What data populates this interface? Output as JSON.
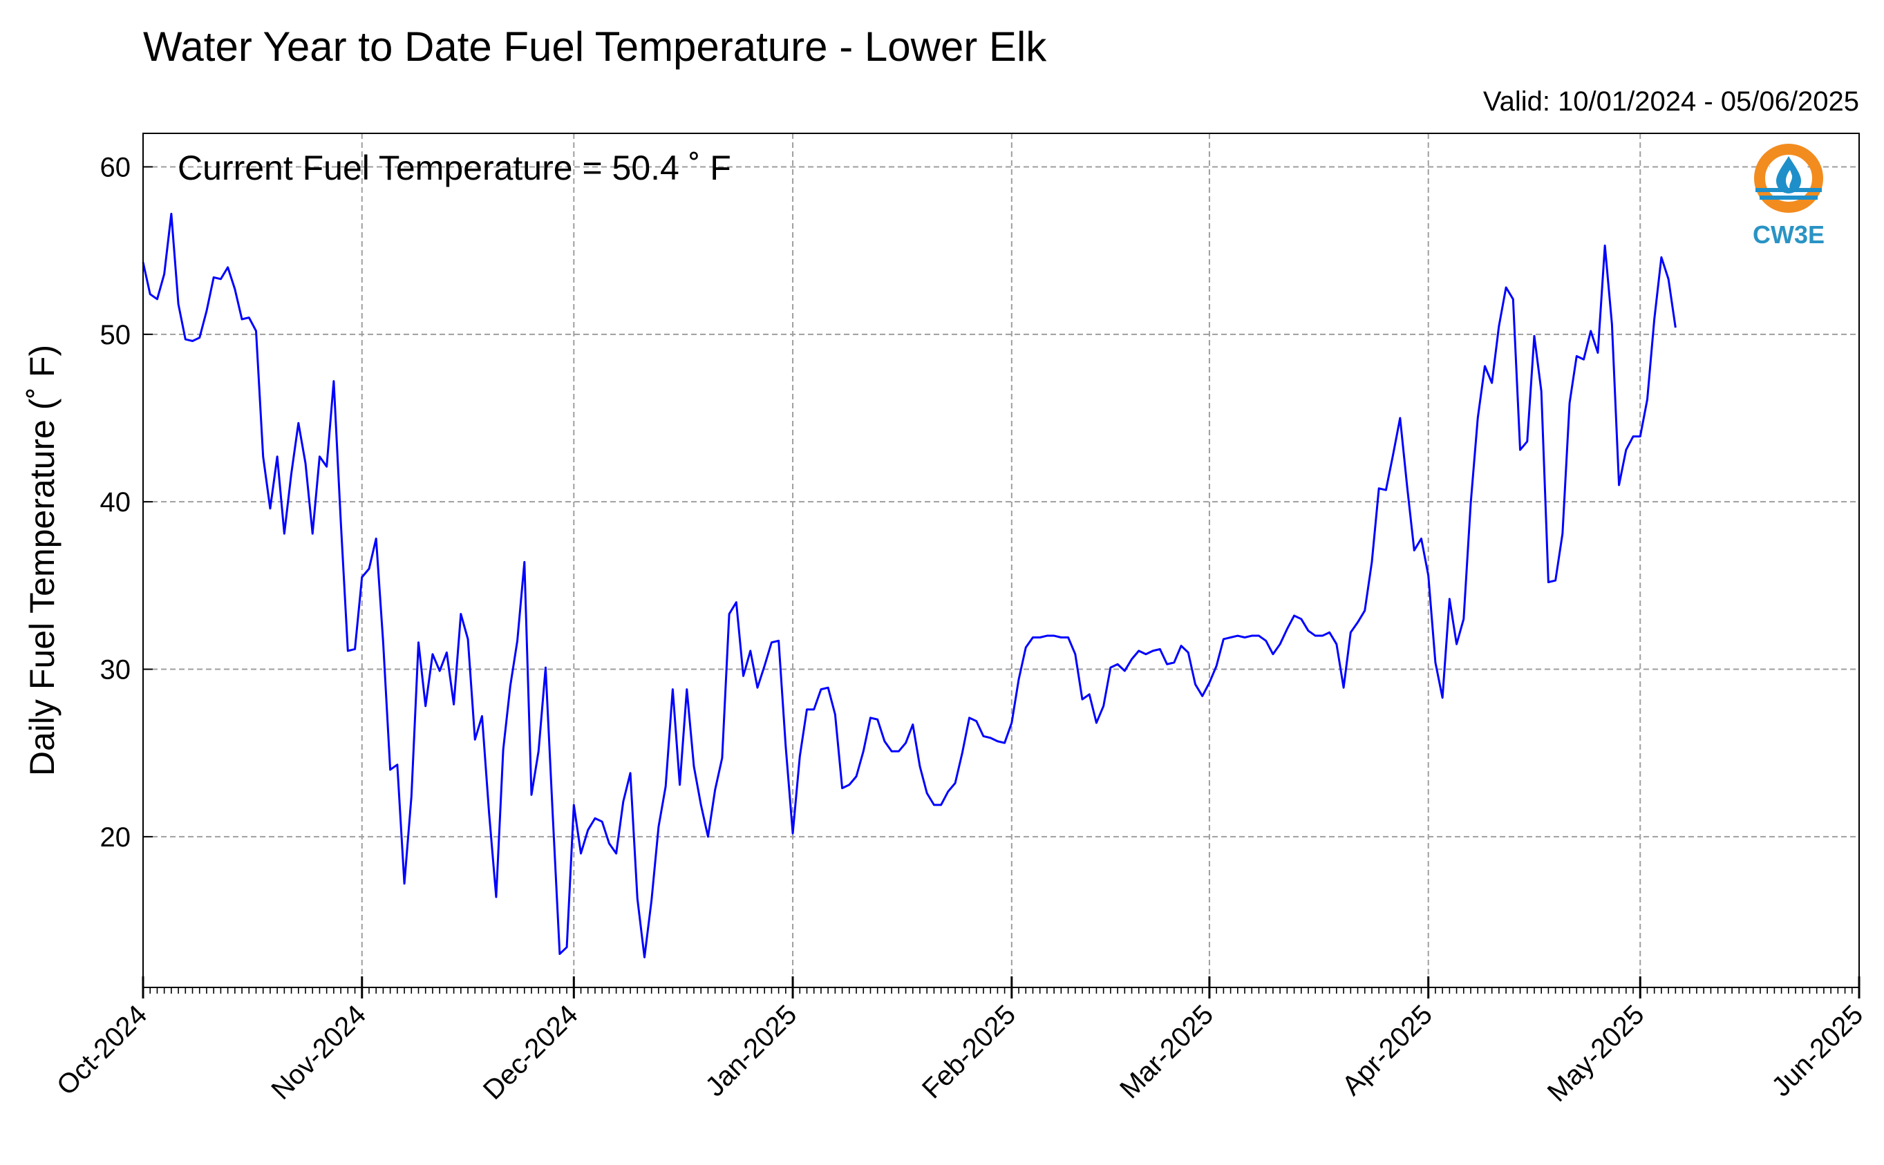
{
  "chart_data": {
    "type": "line",
    "title": "Water Year to Date Fuel Temperature - Lower Elk",
    "subtitle": "Valid: 10/01/2024 - 05/06/2025",
    "annotation": "Current Fuel Temperature = 50.4 ˚ F",
    "xlabel": "",
    "ylabel": "Daily Fuel Temperature (˚ F)",
    "x_start": "2024-10-01",
    "x_end": "2025-06-01",
    "xticks": [
      {
        "date": "2024-10-01",
        "label": "Oct-2024"
      },
      {
        "date": "2024-11-01",
        "label": "Nov-2024"
      },
      {
        "date": "2024-12-01",
        "label": "Dec-2024"
      },
      {
        "date": "2025-01-01",
        "label": "Jan-2025"
      },
      {
        "date": "2025-02-01",
        "label": "Feb-2025"
      },
      {
        "date": "2025-03-01",
        "label": "Mar-2025"
      },
      {
        "date": "2025-04-01",
        "label": "Apr-2025"
      },
      {
        "date": "2025-05-01",
        "label": "May-2025"
      },
      {
        "date": "2025-06-01",
        "label": "Jun-2025"
      }
    ],
    "yticks": [
      20,
      30,
      40,
      50,
      60
    ],
    "ylim": [
      11,
      62
    ],
    "grid": true,
    "line_color": "#0000ff",
    "series": [
      {
        "x": [
          "2024-10-01",
          "2024-10-02",
          "2024-10-03",
          "2024-10-04",
          "2024-10-05",
          "2024-10-06",
          "2024-10-07",
          "2024-10-08",
          "2024-10-09",
          "2024-10-10",
          "2024-10-11",
          "2024-10-12",
          "2024-10-13",
          "2024-10-14",
          "2024-10-15",
          "2024-10-16",
          "2024-10-17",
          "2024-10-18",
          "2024-10-19",
          "2024-10-20",
          "2024-10-21",
          "2024-10-22",
          "2024-10-23",
          "2024-10-24",
          "2024-10-25",
          "2024-10-26",
          "2024-10-27",
          "2024-10-28",
          "2024-10-29",
          "2024-10-30",
          "2024-10-31",
          "2024-11-01",
          "2024-11-02",
          "2024-11-03",
          "2024-11-04",
          "2024-11-05",
          "2024-11-06",
          "2024-11-07",
          "2024-11-08",
          "2024-11-09",
          "2024-11-10",
          "2024-11-11",
          "2024-11-12",
          "2024-11-13",
          "2024-11-14",
          "2024-11-15",
          "2024-11-16",
          "2024-11-17",
          "2024-11-18",
          "2024-11-19",
          "2024-11-20",
          "2024-11-21",
          "2024-11-22",
          "2024-11-23",
          "2024-11-24",
          "2024-11-25",
          "2024-11-26",
          "2024-11-27",
          "2024-11-28",
          "2024-11-29",
          "2024-11-30",
          "2024-12-01",
          "2024-12-02",
          "2024-12-03",
          "2024-12-04",
          "2024-12-05",
          "2024-12-06",
          "2024-12-07",
          "2024-12-08",
          "2024-12-09",
          "2024-12-10",
          "2024-12-11",
          "2024-12-12",
          "2024-12-13",
          "2024-12-14",
          "2024-12-15",
          "2024-12-16",
          "2024-12-17",
          "2024-12-18",
          "2024-12-19",
          "2024-12-20",
          "2024-12-21",
          "2024-12-22",
          "2024-12-23",
          "2024-12-24",
          "2024-12-25",
          "2024-12-26",
          "2024-12-27",
          "2024-12-28",
          "2024-12-29",
          "2024-12-30",
          "2024-12-31",
          "2025-01-01",
          "2025-01-02",
          "2025-01-03",
          "2025-01-04",
          "2025-01-05",
          "2025-01-06",
          "2025-01-07",
          "2025-01-08",
          "2025-01-09",
          "2025-01-10",
          "2025-01-11",
          "2025-01-12",
          "2025-01-13",
          "2025-01-14",
          "2025-01-15",
          "2025-01-16",
          "2025-01-17",
          "2025-01-18",
          "2025-01-19",
          "2025-01-20",
          "2025-01-21",
          "2025-01-22",
          "2025-01-23",
          "2025-01-24",
          "2025-01-25",
          "2025-01-26",
          "2025-01-27",
          "2025-01-28",
          "2025-01-29",
          "2025-01-30",
          "2025-01-31",
          "2025-02-01",
          "2025-02-02",
          "2025-02-03",
          "2025-02-04",
          "2025-02-05",
          "2025-02-06",
          "2025-02-07",
          "2025-02-08",
          "2025-02-09",
          "2025-02-10",
          "2025-02-11",
          "2025-02-12",
          "2025-02-13",
          "2025-02-14",
          "2025-02-15",
          "2025-02-16",
          "2025-02-17",
          "2025-02-18",
          "2025-02-19",
          "2025-02-20",
          "2025-02-21",
          "2025-02-22",
          "2025-02-23",
          "2025-02-24",
          "2025-02-25",
          "2025-02-26",
          "2025-02-27",
          "2025-02-28",
          "2025-03-01",
          "2025-03-02",
          "2025-03-03",
          "2025-03-04",
          "2025-03-05",
          "2025-03-06",
          "2025-03-07",
          "2025-03-08",
          "2025-03-09",
          "2025-03-10",
          "2025-03-11",
          "2025-03-12",
          "2025-03-13",
          "2025-03-14",
          "2025-03-15",
          "2025-03-16",
          "2025-03-17",
          "2025-03-18",
          "2025-03-19",
          "2025-03-20",
          "2025-03-21",
          "2025-03-22",
          "2025-03-23",
          "2025-03-24",
          "2025-03-25",
          "2025-03-26",
          "2025-03-27",
          "2025-03-28",
          "2025-03-29",
          "2025-03-30",
          "2025-03-31",
          "2025-04-01",
          "2025-04-02",
          "2025-04-03",
          "2025-04-04",
          "2025-04-05",
          "2025-04-06",
          "2025-04-07",
          "2025-04-08",
          "2025-04-09",
          "2025-04-10",
          "2025-04-11",
          "2025-04-12",
          "2025-04-13",
          "2025-04-14",
          "2025-04-15",
          "2025-04-16",
          "2025-04-17",
          "2025-04-18",
          "2025-04-19",
          "2025-04-20",
          "2025-04-21",
          "2025-04-22",
          "2025-04-23",
          "2025-04-24",
          "2025-04-25",
          "2025-04-26",
          "2025-04-27",
          "2025-04-28",
          "2025-04-29",
          "2025-04-30",
          "2025-05-01",
          "2025-05-02",
          "2025-05-03",
          "2025-05-04",
          "2025-05-05",
          "2025-05-06"
        ],
        "y": [
          54.3,
          52.4,
          52.1,
          53.6,
          57.2,
          51.8,
          49.7,
          49.6,
          49.8,
          51.4,
          53.4,
          53.3,
          54.0,
          52.7,
          50.9,
          51.0,
          50.2,
          42.7,
          39.6,
          42.7,
          38.1,
          41.7,
          44.7,
          42.3,
          38.1,
          42.7,
          42.1,
          47.2,
          38.8,
          31.1,
          31.2,
          35.5,
          36.0,
          37.8,
          31.6,
          24.0,
          24.3,
          17.2,
          22.4,
          31.6,
          27.8,
          30.9,
          29.9,
          31.0,
          27.9,
          33.3,
          31.8,
          25.8,
          27.2,
          21.4,
          16.4,
          25.2,
          29.0,
          31.7,
          36.4,
          22.5,
          25.1,
          30.1,
          21.4,
          13.0,
          13.4,
          21.9,
          19.0,
          20.4,
          21.1,
          20.9,
          19.6,
          19.0,
          22.1,
          23.8,
          16.3,
          12.8,
          16.2,
          20.6,
          23.0,
          28.8,
          23.1,
          28.8,
          24.2,
          21.9,
          20.0,
          22.8,
          24.7,
          33.3,
          34.0,
          29.6,
          31.1,
          28.9,
          30.2,
          31.6,
          31.7,
          25.4,
          20.2,
          24.8,
          27.6,
          27.6,
          28.8,
          28.9,
          27.3,
          22.9,
          23.1,
          23.6,
          25.1,
          27.1,
          27.0,
          25.7,
          25.1,
          25.1,
          25.6,
          26.7,
          24.2,
          22.6,
          21.9,
          21.9,
          22.7,
          23.2,
          25.0,
          27.1,
          26.9,
          26.0,
          25.9,
          25.7,
          25.6,
          26.8,
          29.4,
          31.3,
          31.9,
          31.9,
          32.0,
          32.0,
          31.9,
          31.9,
          30.9,
          28.2,
          28.5,
          26.8,
          27.8,
          30.1,
          30.3,
          29.9,
          30.6,
          31.1,
          30.9,
          31.1,
          31.2,
          30.3,
          30.4,
          31.4,
          31.0,
          29.1,
          28.4,
          29.2,
          30.2,
          31.8,
          31.9,
          32.0,
          31.9,
          32.0,
          32.0,
          31.7,
          30.9,
          31.5,
          32.4,
          33.2,
          33.0,
          32.3,
          32.0,
          32.0,
          32.2,
          31.5,
          28.9,
          32.2,
          32.8,
          33.5,
          36.4,
          40.8,
          40.7,
          42.8,
          45.0,
          40.9,
          37.1,
          37.8,
          35.6,
          30.4,
          28.3,
          34.2,
          31.5,
          33.0,
          39.9,
          45.0,
          48.1,
          47.1,
          50.5,
          52.8,
          52.1,
          43.1,
          43.6,
          49.9,
          46.6,
          35.2,
          35.3,
          38.1,
          45.9,
          48.7,
          48.5,
          50.2,
          48.9,
          55.3,
          50.6,
          41.0,
          43.1,
          43.9,
          43.9,
          46.1,
          50.9,
          54.6,
          53.3,
          50.4
        ]
      }
    ]
  },
  "logo": {
    "text": "CW3E",
    "ring_color": "#f28c1f",
    "drop_color": "#1f8fc9"
  }
}
